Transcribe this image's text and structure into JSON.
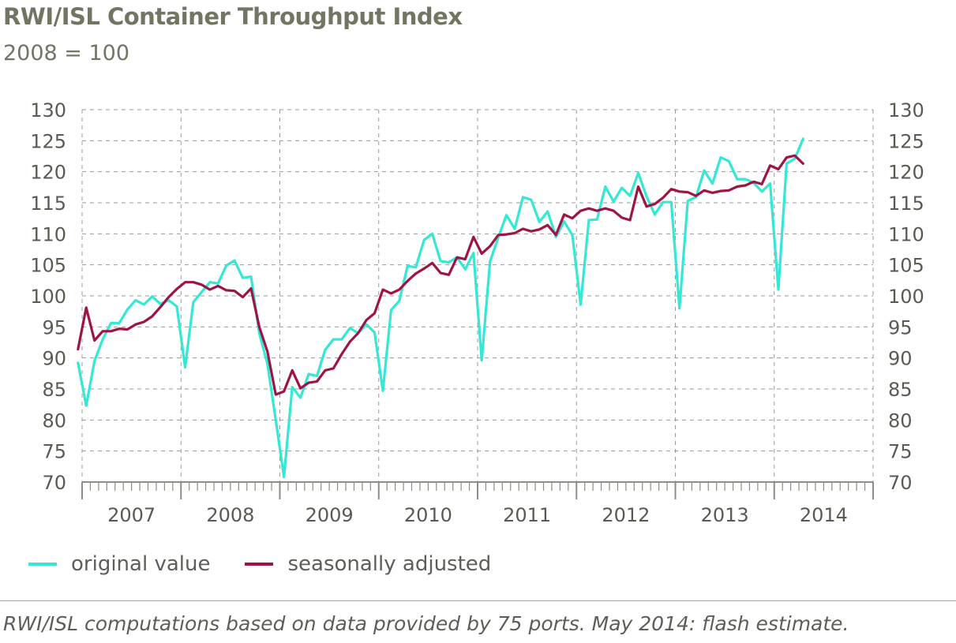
{
  "title": "RWI/ISL Container Throughput Index",
  "subtitle": "2008 = 100",
  "footnote": "RWI/ISL computations based on data provided by 75 ports. May 2014: flash estimate.",
  "chart_data": {
    "type": "line",
    "x_axis": {
      "unit": "month",
      "start": "2006-12",
      "year_labels": [
        "2007",
        "2008",
        "2009",
        "2010",
        "2011",
        "2012",
        "2013",
        "2014"
      ]
    },
    "y_axis": {
      "ylim": [
        70,
        130
      ],
      "ticks": [
        "70",
        "75",
        "80",
        "85",
        "90",
        "95",
        "100",
        "105",
        "110",
        "115",
        "120",
        "125",
        "130"
      ],
      "both_sides": true
    },
    "grid": "dashed, horizontal every 5 and vertical at year boundaries",
    "legend": "bottom-left",
    "series": [
      {
        "name": "original value",
        "color": "#33e8d4",
        "values": [
          89.2,
          82.3,
          89.5,
          93.0,
          95.6,
          95.6,
          97.8,
          99.3,
          98.6,
          99.9,
          98.7,
          99.3,
          98.3,
          88.5,
          99.0,
          100.6,
          102.2,
          102.0,
          104.9,
          105.7,
          102.9,
          103.1,
          94.0,
          89.0,
          80.0,
          70.8,
          85.3,
          83.6,
          87.4,
          87.1,
          91.3,
          93.0,
          93.0,
          94.8,
          94.0,
          95.4,
          94.1,
          84.7,
          97.7,
          99.2,
          104.8,
          104.6,
          109.0,
          110.0,
          105.6,
          105.4,
          106.2,
          104.3,
          106.9,
          89.6,
          105.5,
          109.4,
          113.0,
          110.8,
          115.9,
          115.5,
          111.9,
          113.6,
          109.5,
          112.0,
          109.8,
          98.6,
          112.2,
          112.3,
          117.6,
          115.2,
          117.4,
          116.1,
          119.8,
          116.0,
          113.1,
          115.1,
          115.1,
          98.0,
          115.3,
          115.9,
          120.2,
          118.1,
          122.3,
          121.7,
          118.8,
          118.8,
          118.2,
          116.8,
          118.1,
          101.0,
          121.3,
          122.1,
          125.3
        ]
      },
      {
        "name": "seasonally adjusted",
        "color": "#9e1444",
        "values": [
          91.4,
          98.1,
          92.8,
          94.3,
          94.3,
          94.7,
          94.6,
          95.4,
          95.8,
          96.7,
          98.2,
          99.8,
          101.1,
          102.2,
          102.2,
          101.8,
          101.0,
          101.6,
          100.9,
          100.8,
          99.8,
          101.2,
          95.0,
          91.0,
          84.1,
          84.6,
          88.0,
          85.1,
          86.0,
          86.2,
          88.0,
          88.3,
          90.6,
          92.6,
          94.0,
          96.1,
          97.2,
          101.0,
          100.4,
          101.0,
          102.4,
          103.6,
          104.4,
          105.3,
          103.7,
          103.4,
          106.2,
          105.9,
          109.5,
          106.8,
          108.0,
          109.8,
          109.9,
          110.1,
          110.8,
          110.4,
          110.7,
          111.4,
          109.8,
          113.1,
          112.5,
          113.7,
          114.1,
          113.7,
          114.1,
          113.7,
          112.6,
          112.2,
          117.6,
          114.4,
          114.8,
          115.8,
          117.2,
          116.8,
          116.7,
          116.1,
          117.0,
          116.6,
          116.9,
          117.0,
          117.6,
          117.8,
          118.4,
          118.0,
          121.0,
          120.4,
          122.3,
          122.6,
          121.3
        ]
      }
    ]
  },
  "legend": {
    "items": [
      {
        "label": "original value",
        "color": "#33e8d4"
      },
      {
        "label": "seasonally adjusted",
        "color": "#9e1444"
      }
    ]
  }
}
